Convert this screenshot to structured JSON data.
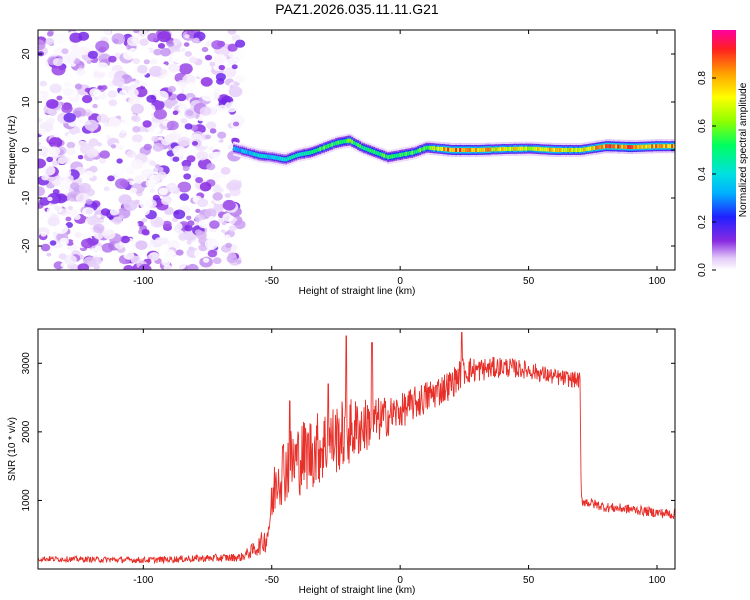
{
  "title": "PAZ1.2026.035.11.11.G21",
  "chart_data": [
    {
      "type": "heatmap",
      "xlabel": "Height of straight line (km)",
      "ylabel": "Frequency (Hz)",
      "xlim": [
        -141,
        107
      ],
      "ylim": [
        -25,
        25
      ],
      "xticks": [
        -100,
        -50,
        0,
        50,
        100
      ],
      "yticks": [
        -20,
        -10,
        0,
        10,
        20
      ],
      "colorbar": {
        "label": "Normalized spectral amplitude",
        "range": [
          0.0,
          1.0
        ],
        "ticks": [
          "0.0",
          "0.2",
          "0.4",
          "0.6",
          "0.8"
        ],
        "tick_values": [
          0.0,
          0.2,
          0.4,
          0.6,
          0.8
        ]
      },
      "noise_region": {
        "x_from": -141,
        "x_to": -62,
        "y_from": -25,
        "y_to": 25,
        "amplitude_max": 0.15
      },
      "ridge": {
        "description": "signal ridge frequency vs height",
        "x": [
          -65,
          -55,
          -50,
          -45,
          -40,
          -35,
          -30,
          -25,
          -20,
          -15,
          -10,
          -5,
          0,
          5,
          10,
          20,
          30,
          40,
          50,
          60,
          70,
          80,
          90,
          100,
          107
        ],
        "y": [
          0.3,
          -1.2,
          -1.5,
          -2.0,
          -1.0,
          -0.5,
          0.5,
          1.5,
          2.0,
          0.5,
          -0.5,
          -1.5,
          -1.0,
          -0.5,
          0.5,
          0.0,
          0.0,
          0.2,
          0.3,
          0.0,
          0.0,
          0.8,
          0.6,
          0.8,
          0.8
        ],
        "amplitude": [
          0.3,
          0.4,
          0.35,
          0.4,
          0.45,
          0.5,
          0.55,
          0.5,
          0.55,
          0.5,
          0.5,
          0.55,
          0.5,
          0.55,
          0.6,
          0.85,
          0.8,
          0.7,
          0.7,
          0.75,
          0.7,
          0.85,
          0.85,
          0.8,
          0.8
        ]
      }
    },
    {
      "type": "line",
      "xlabel": "Height of straight line (km)",
      "ylabel": "SNR (10 * v/v)",
      "xlim": [
        -141,
        107
      ],
      "ylim": [
        0,
        3500
      ],
      "xticks": [
        -100,
        -50,
        0,
        50,
        100
      ],
      "yticks": [
        1000,
        2000,
        3000
      ],
      "color": "#e8302a",
      "envelope": {
        "description": "mean SNR trend and noise amplitude vs height",
        "x": [
          -141,
          -100,
          -62,
          -56,
          -52,
          -50,
          -48,
          -40,
          -30,
          -20,
          -10,
          0,
          10,
          20,
          25,
          30,
          40,
          50,
          60,
          70,
          70.5,
          80,
          90,
          100,
          107
        ],
        "mean": [
          150,
          130,
          170,
          300,
          450,
          900,
          1400,
          1600,
          1800,
          2000,
          2150,
          2300,
          2500,
          2700,
          2900,
          2900,
          2950,
          2900,
          2800,
          2750,
          1000,
          900,
          870,
          820,
          800
        ],
        "noise": [
          40,
          45,
          60,
          120,
          200,
          350,
          500,
          550,
          550,
          500,
          350,
          250,
          250,
          220,
          220,
          180,
          150,
          130,
          120,
          120,
          80,
          70,
          70,
          70,
          80
        ]
      },
      "peaks": [
        {
          "x": -21,
          "y": 3400
        },
        {
          "x": -11,
          "y": 3300
        },
        {
          "x": 24,
          "y": 3450
        },
        {
          "x": -28,
          "y": 2700
        },
        {
          "x": -43,
          "y": 2450
        }
      ]
    }
  ]
}
